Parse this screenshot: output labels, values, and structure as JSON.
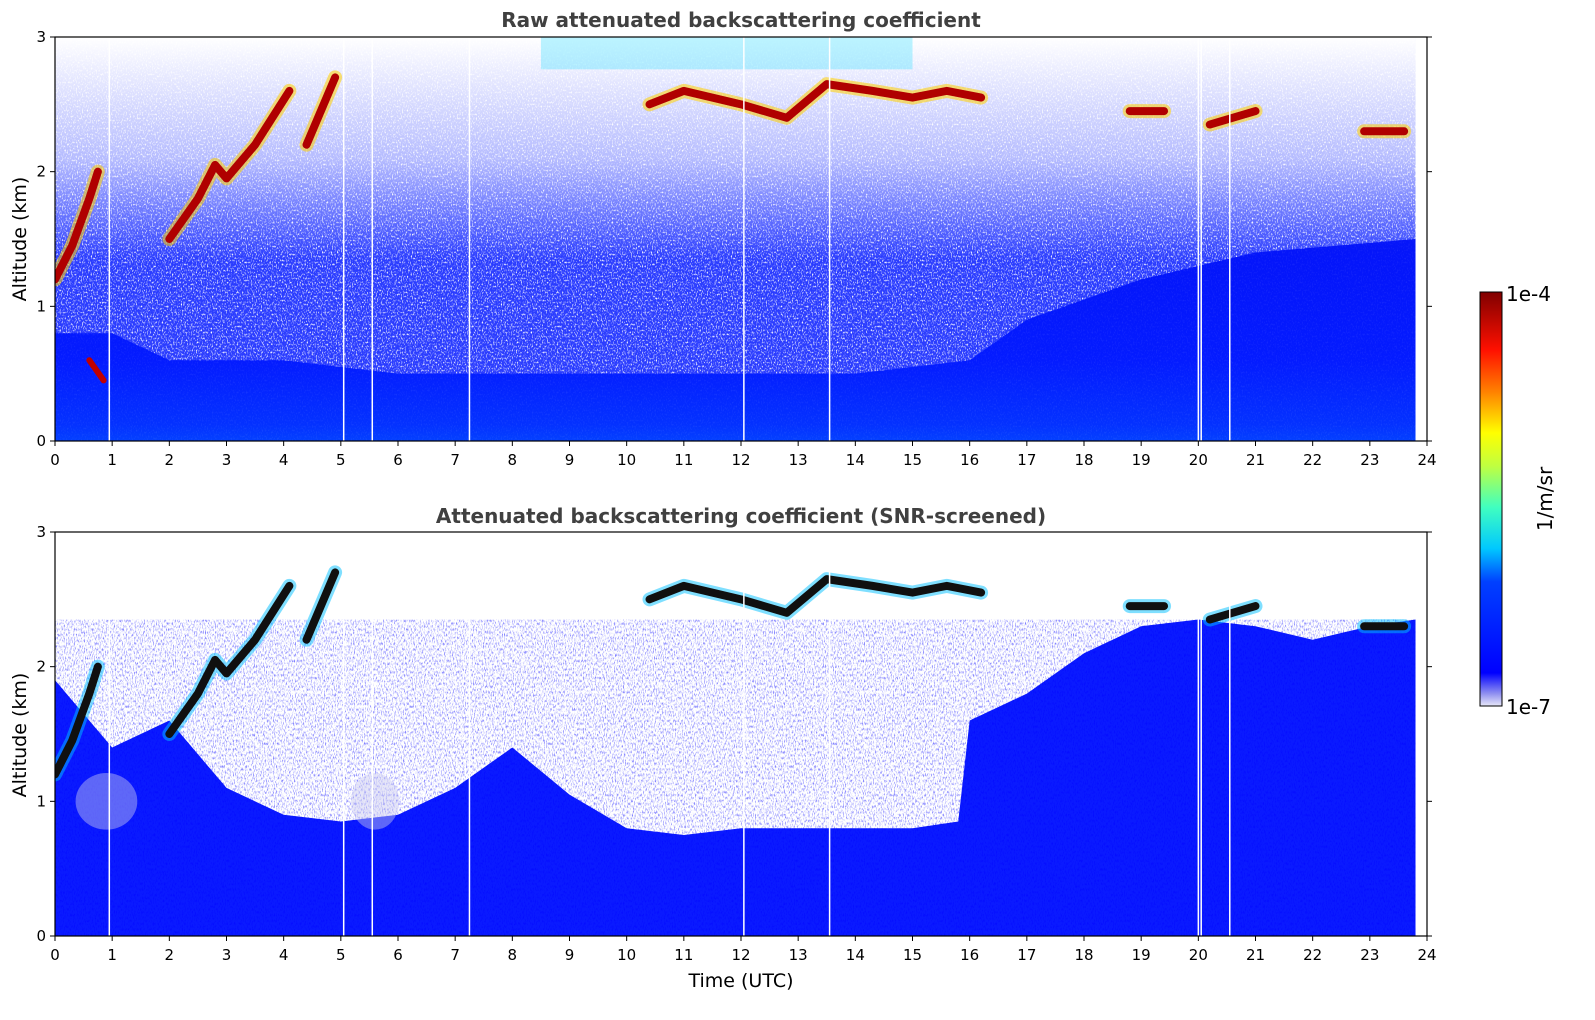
{
  "chart_data": [
    {
      "type": "heatmap",
      "title": "Raw attenuated backscattering coefficient",
      "xlabel": "",
      "ylabel": "Altitude (km)",
      "xlim": [
        0,
        24
      ],
      "ylim": [
        0,
        3
      ],
      "x_ticks": [
        "0",
        "1",
        "2",
        "3",
        "4",
        "5",
        "6",
        "7",
        "8",
        "9",
        "10",
        "11",
        "12",
        "13",
        "14",
        "15",
        "16",
        "17",
        "18",
        "19",
        "20",
        "21",
        "22",
        "23",
        "24"
      ],
      "y_ticks": [
        "0",
        "1",
        "2",
        "3"
      ],
      "data_end_time": 23.8,
      "gaps_utc": [
        0.95,
        5.05,
        5.55,
        7.25,
        12.05,
        13.55,
        20.0,
        20.05,
        20.55
      ],
      "features": {
        "boundary_layer_top_km": [
          [
            0,
            0.8
          ],
          [
            1,
            0.8
          ],
          [
            2,
            0.6
          ],
          [
            4,
            0.6
          ],
          [
            6,
            0.5
          ],
          [
            8,
            0.5
          ],
          [
            10,
            0.5
          ],
          [
            12,
            0.5
          ],
          [
            14,
            0.5
          ],
          [
            16,
            0.6
          ],
          [
            17,
            0.9
          ],
          [
            19,
            1.2
          ],
          [
            21,
            1.4
          ],
          [
            23.8,
            1.5
          ]
        ],
        "cloud_layers": [
          {
            "x": [
              0.0,
              0.3,
              0.6,
              0.75
            ],
            "y": [
              1.2,
              1.45,
              1.8,
              2.0
            ]
          },
          {
            "x": [
              2.0,
              2.5,
              2.8,
              3.0,
              3.5,
              4.1
            ],
            "y": [
              1.5,
              1.8,
              2.05,
              1.95,
              2.2,
              2.6
            ]
          },
          {
            "x": [
              4.4,
              4.9
            ],
            "y": [
              2.2,
              2.7
            ]
          },
          {
            "x": [
              10.4,
              11.0,
              12.0,
              12.8,
              13.5,
              14.3,
              15.0,
              15.6,
              16.2
            ],
            "y": [
              2.5,
              2.6,
              2.5,
              2.4,
              2.65,
              2.6,
              2.55,
              2.6,
              2.55
            ]
          },
          {
            "x": [
              18.8,
              19.4
            ],
            "y": [
              2.45,
              2.45
            ]
          },
          {
            "x": [
              20.2,
              21.0
            ],
            "y": [
              2.35,
              2.45
            ]
          },
          {
            "x": [
              22.9,
              23.6
            ],
            "y": [
              2.3,
              2.3
            ]
          }
        ]
      }
    },
    {
      "type": "heatmap",
      "title": "Attenuated backscattering coefficient (SNR-screened)",
      "xlabel": "Time (UTC)",
      "ylabel": "Altitude (km)",
      "xlim": [
        0,
        24
      ],
      "ylim": [
        0,
        3
      ],
      "x_ticks": [
        "0",
        "1",
        "2",
        "3",
        "4",
        "5",
        "6",
        "7",
        "8",
        "9",
        "10",
        "11",
        "12",
        "13",
        "14",
        "15",
        "16",
        "17",
        "18",
        "19",
        "20",
        "21",
        "22",
        "23",
        "24"
      ],
      "y_ticks": [
        "0",
        "1",
        "2",
        "3"
      ],
      "screened_top_km": [
        [
          0,
          1.9
        ],
        [
          1,
          1.4
        ],
        [
          2,
          1.6
        ],
        [
          3,
          1.1
        ],
        [
          4,
          0.9
        ],
        [
          5,
          0.85
        ],
        [
          6,
          0.9
        ],
        [
          7,
          1.1
        ],
        [
          8,
          1.4
        ],
        [
          9,
          1.05
        ],
        [
          10,
          0.8
        ],
        [
          11,
          0.75
        ],
        [
          12,
          0.8
        ],
        [
          13,
          0.8
        ],
        [
          14,
          0.8
        ],
        [
          15,
          0.8
        ],
        [
          15.8,
          0.85
        ],
        [
          16,
          1.6
        ],
        [
          17,
          1.8
        ],
        [
          18,
          2.1
        ],
        [
          19,
          2.3
        ],
        [
          20,
          2.35
        ],
        [
          21,
          2.3
        ],
        [
          22,
          2.2
        ],
        [
          23,
          2.3
        ],
        [
          23.8,
          2.35
        ]
      ]
    }
  ],
  "colorbar": {
    "label": "1/m/sr",
    "max_label": "1e-4",
    "min_label": "1e-7",
    "scale": "log",
    "range": [
      1e-07,
      0.0001
    ],
    "colormap": "jet",
    "low_colors": [
      "#e8e8f8",
      "#c8c8f4",
      "#a0a0f0",
      "#7878f0"
    ]
  }
}
